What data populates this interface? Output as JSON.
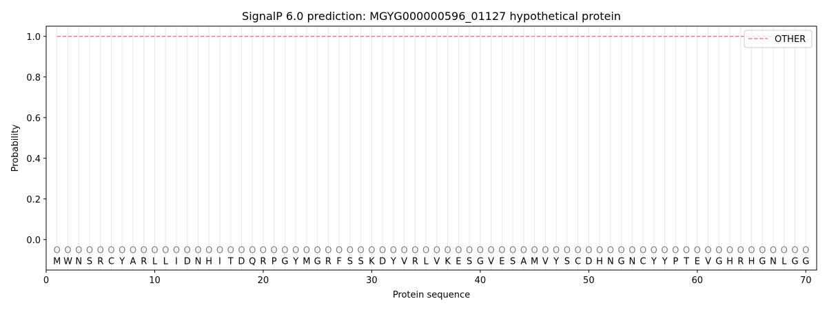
{
  "chart_data": {
    "type": "line",
    "title": "SignalP 6.0 prediction: MGYG000000596_01127 hypothetical protein",
    "xlabel": "Protein sequence",
    "ylabel": "Probability",
    "xlim": [
      0,
      71
    ],
    "ylim": [
      -0.15,
      1.05
    ],
    "xticks": [
      0,
      10,
      20,
      30,
      40,
      50,
      60,
      70
    ],
    "yticks": [
      0.0,
      0.2,
      0.4,
      0.6,
      0.8,
      1.0
    ],
    "ytick_labels": [
      "0.0",
      "0.2",
      "0.4",
      "0.6",
      "0.8",
      "1.0"
    ],
    "grid": "vertical lines at each residue",
    "legend_position": "top-right",
    "sequence": [
      "M",
      "W",
      "N",
      "S",
      "R",
      "C",
      "Y",
      "A",
      "R",
      "L",
      "L",
      "I",
      "D",
      "N",
      "H",
      "I",
      "T",
      "D",
      "Q",
      "R",
      "P",
      "G",
      "Y",
      "M",
      "G",
      "R",
      "F",
      "S",
      "S",
      "K",
      "D",
      "Y",
      "V",
      "R",
      "L",
      "V",
      "K",
      "E",
      "S",
      "G",
      "V",
      "E",
      "S",
      "A",
      "M",
      "V",
      "Y",
      "S",
      "C",
      "D",
      "H",
      "N",
      "G",
      "N",
      "C",
      "Y",
      "Y",
      "P",
      "T",
      "E",
      "V",
      "G",
      "H",
      "R",
      "H",
      "G",
      "N",
      "L",
      "G",
      "G"
    ],
    "predicted_labels": "O",
    "series": [
      {
        "name": "OTHER",
        "color": "#f08080",
        "style": "dashed",
        "x_range": [
          1,
          70
        ],
        "value": 1.0
      }
    ]
  }
}
